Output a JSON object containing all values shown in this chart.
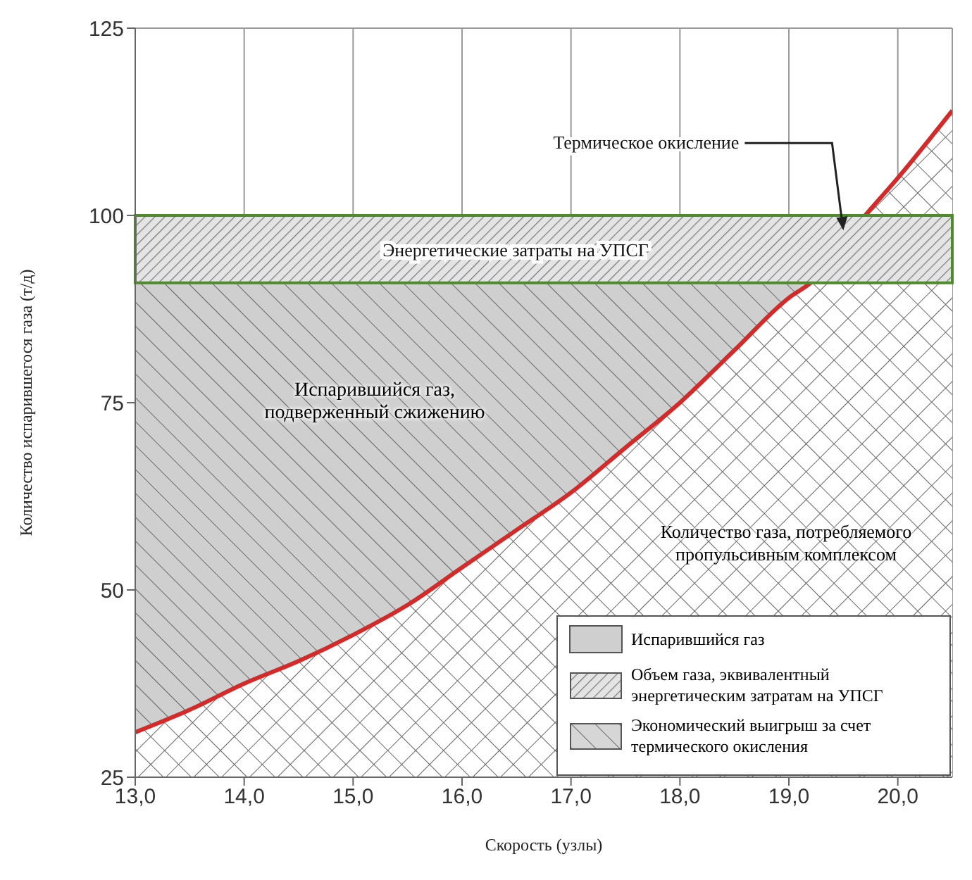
{
  "chart_data": {
    "type": "area",
    "xlabel": "Скорость (узлы)",
    "ylabel": "Количество испарившегося газа (т/д)",
    "xlim": [
      13,
      20.5
    ],
    "xticks": [
      {
        "value": 13,
        "label": "13,0"
      },
      {
        "value": 14,
        "label": "14,0"
      },
      {
        "value": 15,
        "label": "15,0"
      },
      {
        "value": 16,
        "label": "16,0"
      },
      {
        "value": 17,
        "label": "17,0"
      },
      {
        "value": 18,
        "label": "18,0"
      },
      {
        "value": 19,
        "label": "19,0"
      },
      {
        "value": 20,
        "label": "20,0"
      }
    ],
    "ylim": [
      25,
      125
    ],
    "yticks": [
      25,
      50,
      75,
      100,
      125
    ],
    "grid": true,
    "legend": "bottom right",
    "marker": "none",
    "line_style": "solid",
    "series": [
      {
        "name": "Испарившийся газ",
        "color": "#cfcfcf",
        "x": [
          13,
          19.2
        ],
        "values": [
          91,
          91
        ]
      },
      {
        "color": "#d42a2a",
        "x": [
          13,
          13.5,
          14,
          14.5,
          15,
          15.5,
          16,
          16.5,
          17,
          17.5,
          18,
          18.5,
          19,
          19.2,
          19.7,
          20,
          20.5
        ],
        "values": [
          31,
          34,
          37.5,
          40.5,
          44,
          48,
          53,
          58,
          63,
          69,
          75,
          82,
          89,
          91,
          100,
          105,
          114
        ]
      }
    ],
    "bands": [
      {
        "axis": "y",
        "from": 91,
        "to": 100,
        "label": "Энергетические затраты на УПСГ",
        "color": "#4f8a2e"
      }
    ],
    "annotations": [
      {
        "text": "Термическое окисление",
        "x": 19.5,
        "y": 98
      },
      "Испарившийся газ, подверженный сжижению",
      "Количество газа, потребляемого пропульсивным комплексом",
      "Объем газа, эквивалентный энергетическим затратам на УПСГ",
      "Экономический выигрыш за счет термического окисления"
    ]
  }
}
